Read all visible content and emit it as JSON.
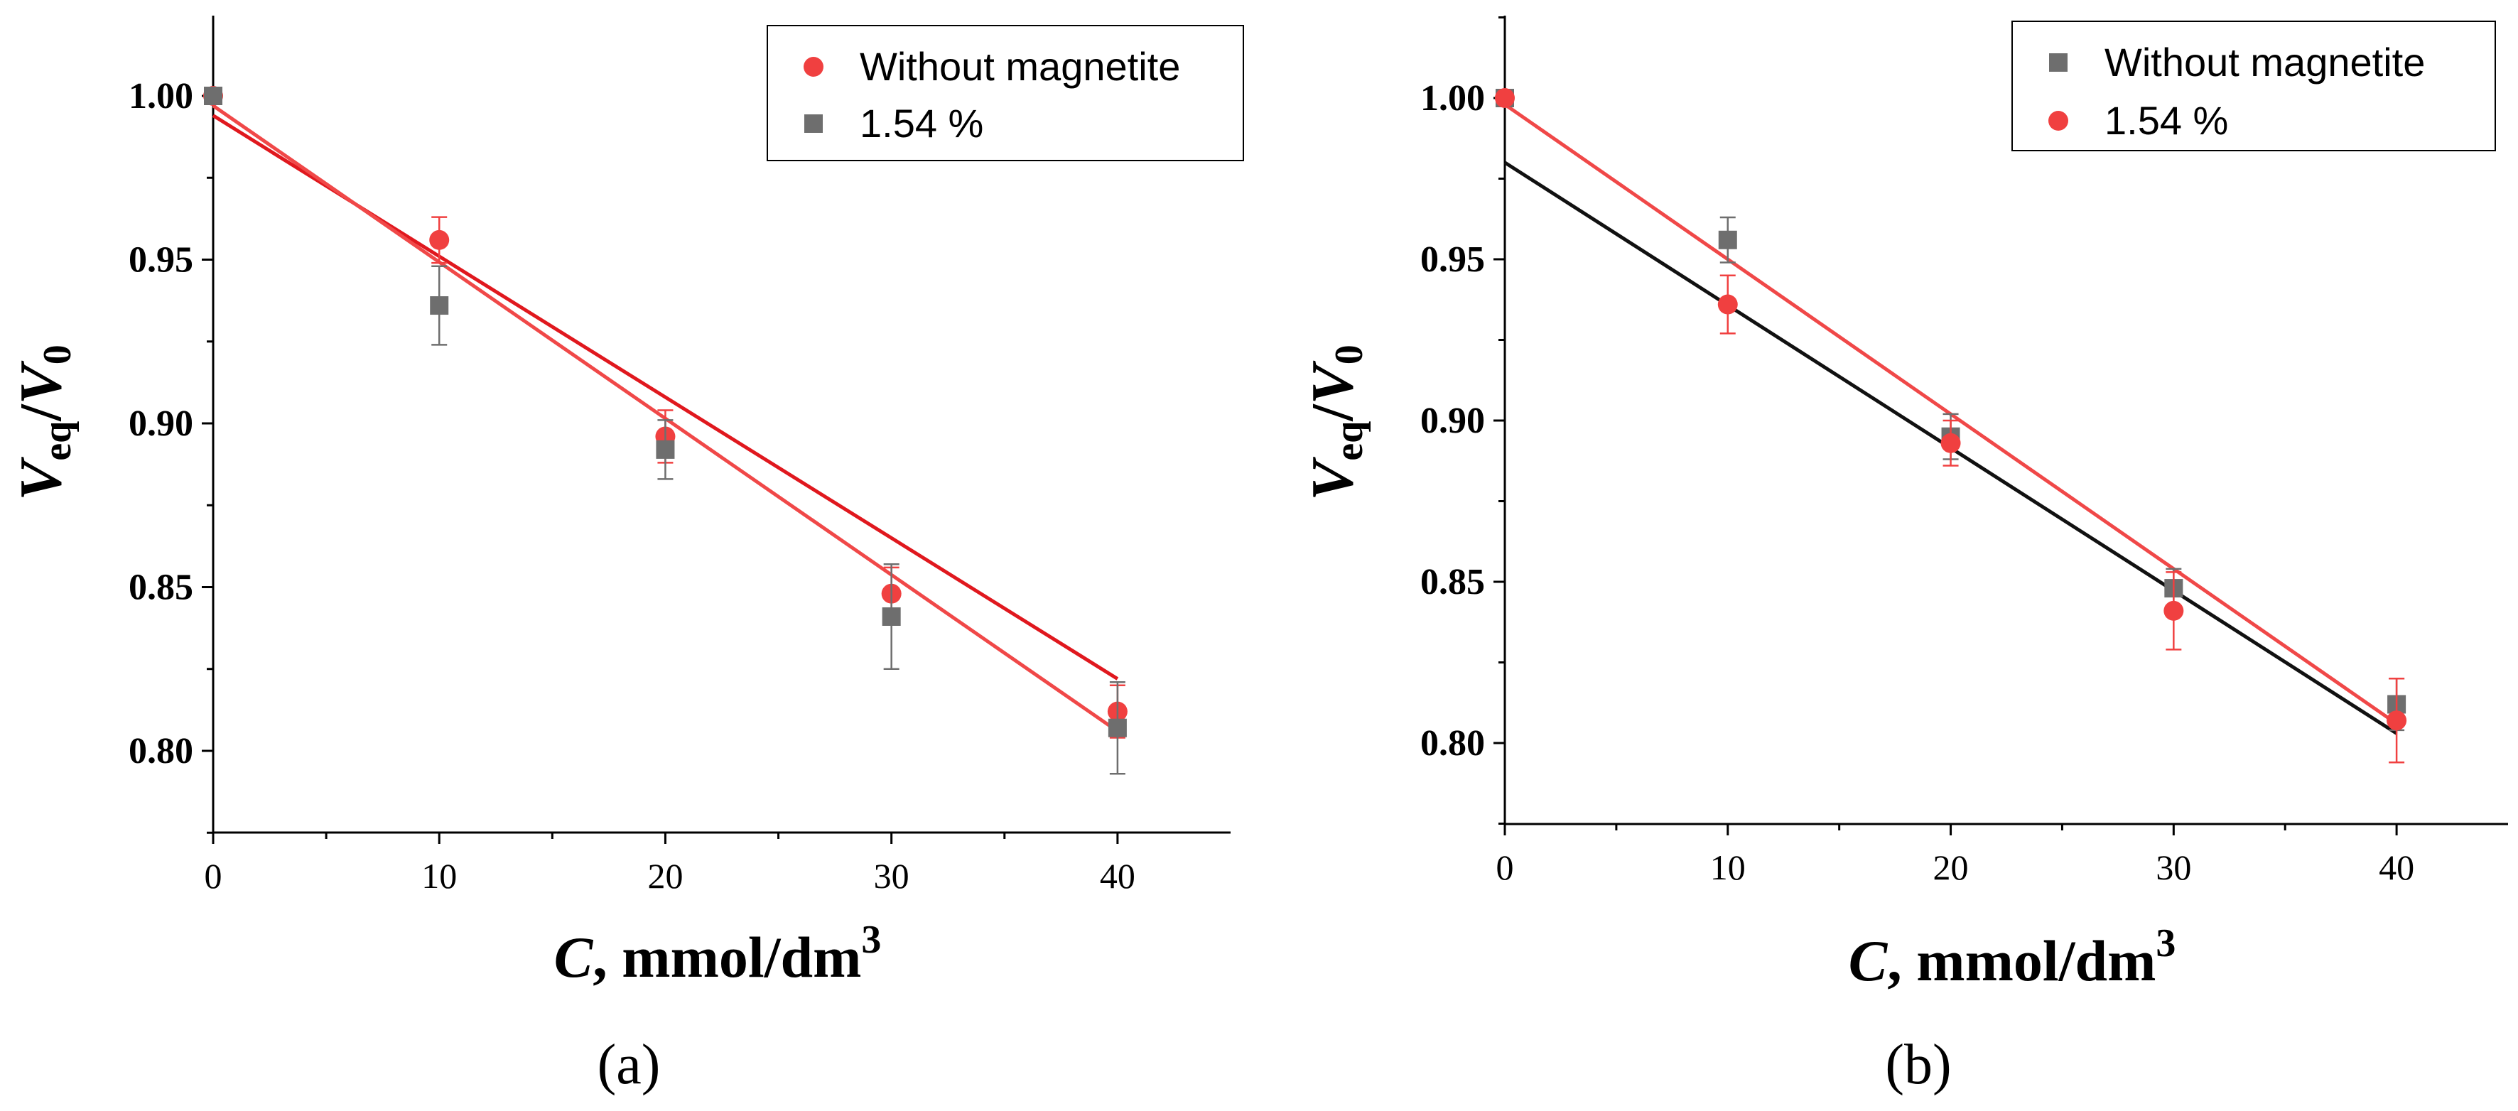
{
  "chart_data": [
    {
      "type": "scatter",
      "panel_label": "(a)",
      "xlabel": {
        "var": "C",
        "unit": ", mmol/dm",
        "sup": "3"
      },
      "ylabel": {
        "var": "V",
        "sub": "eq",
        "sep": "/",
        "var2": "V",
        "sub2": "0"
      },
      "xlim": [
        0,
        45
      ],
      "ylim": [
        0.775,
        1.025
      ],
      "xticks": [
        "0",
        "10",
        "20",
        "30",
        "40"
      ],
      "yticks": [
        "0.80",
        "0.85",
        "0.90",
        "0.95",
        "1.00"
      ],
      "legend": {
        "placement": "top-right"
      },
      "series": [
        {
          "name": "Without magnetite",
          "marker": "circle",
          "color": "#f04040",
          "x": [
            0,
            10,
            20,
            30,
            40
          ],
          "y": [
            1.0,
            0.956,
            0.896,
            0.848,
            0.812
          ],
          "yerr": [
            0,
            0.007,
            0.008,
            0.008,
            0.008
          ]
        },
        {
          "name": "1.54 %",
          "marker": "square",
          "color": "#6e6e6e",
          "x": [
            0,
            10,
            20,
            30,
            40
          ],
          "y": [
            1.0,
            0.936,
            0.892,
            0.841,
            0.807
          ],
          "yerr": [
            0,
            0.012,
            0.009,
            0.016,
            0.014
          ]
        }
      ],
      "fits": [
        {
          "color": "#e0181e",
          "x": [
            0,
            40
          ],
          "y": [
            0.994,
            0.822
          ]
        },
        {
          "color": "#f04848",
          "x": [
            0,
            40
          ],
          "y": [
            0.997,
            0.806
          ]
        }
      ]
    },
    {
      "type": "scatter",
      "panel_label": "(b)",
      "xlabel": {
        "var": "C",
        "unit": ", mmol/dm",
        "sup": "3"
      },
      "ylabel": {
        "var": "V",
        "sub": "eq",
        "sep": "/",
        "var2": "V",
        "sub2": "0"
      },
      "xlim": [
        0,
        45
      ],
      "ylim": [
        0.775,
        1.025
      ],
      "xticks": [
        "0",
        "10",
        "20",
        "30",
        "40"
      ],
      "yticks": [
        "0.80",
        "0.85",
        "0.90",
        "0.95",
        "1.00"
      ],
      "legend": {
        "placement": "top-right"
      },
      "series": [
        {
          "name": "Without magnetite",
          "marker": "square",
          "color": "#6e6e6e",
          "x": [
            0,
            10,
            20,
            30,
            40
          ],
          "y": [
            1.0,
            0.956,
            0.895,
            0.848,
            0.812
          ],
          "yerr": [
            0,
            0.007,
            0.007,
            0.006,
            0.008
          ]
        },
        {
          "name": "1.54 %",
          "marker": "circle",
          "color": "#f04040",
          "x": [
            0,
            10,
            20,
            30,
            40
          ],
          "y": [
            1.0,
            0.936,
            0.893,
            0.841,
            0.807
          ],
          "yerr": [
            0,
            0.009,
            0.007,
            0.012,
            0.013
          ]
        }
      ],
      "fits": [
        {
          "color": "#111111",
          "x": [
            0,
            40
          ],
          "y": [
            0.98,
            0.803
          ]
        },
        {
          "color": "#f04848",
          "x": [
            0,
            40
          ],
          "y": [
            0.998,
            0.806
          ]
        }
      ]
    }
  ]
}
